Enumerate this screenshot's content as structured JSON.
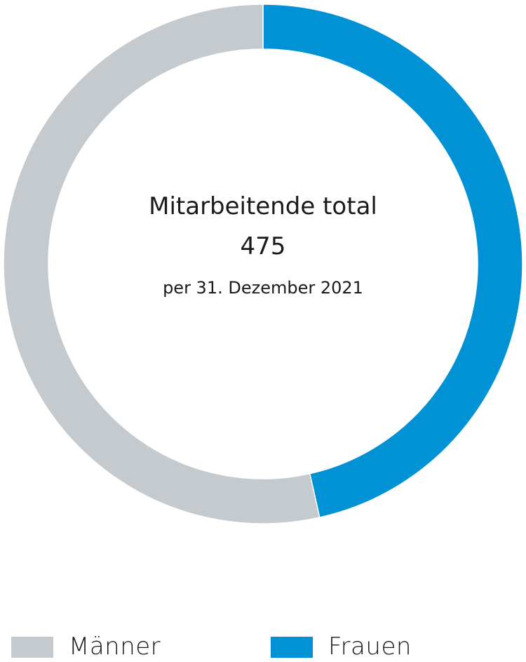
{
  "chart_data": {
    "type": "pie",
    "variant": "donut",
    "center": {
      "label": "Mitarbeitende total",
      "value": "475",
      "note": "per 31. Dezember 2021"
    },
    "slices": [
      {
        "name": "Frauen",
        "share": 0.465,
        "color": "#0092d4"
      },
      {
        "name": "Männer",
        "share": 0.535,
        "color": "#c4cace"
      }
    ],
    "legend": {
      "placement": "bottom",
      "items": [
        {
          "name": "Männer",
          "color": "#c4cace"
        },
        {
          "name": "Frauen",
          "color": "#0092d4"
        }
      ]
    }
  }
}
